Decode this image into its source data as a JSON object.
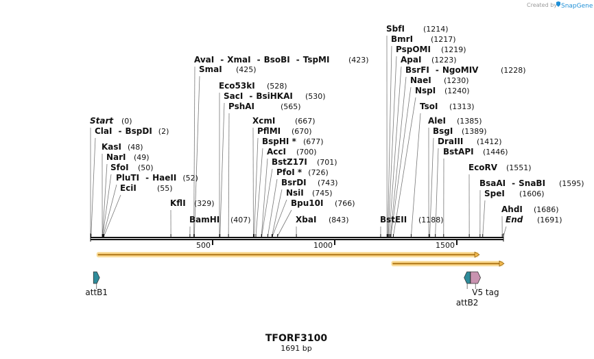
{
  "credit": {
    "prefix": "Created by",
    "brand": "SnapGene"
  },
  "map": {
    "title": "TFORF3100",
    "length_label": "1691 bp",
    "length": 1691,
    "ticks": [
      {
        "value": 500,
        "label": "500"
      },
      {
        "value": 1000,
        "label": "1000"
      },
      {
        "value": 1500,
        "label": "1500"
      }
    ]
  },
  "sites": [
    {
      "names": [
        "Start"
      ],
      "pos": 0,
      "pos_label": "(0)",
      "italic": true
    },
    {
      "names": [
        "ClaI",
        "BspDI"
      ],
      "pos": 2,
      "pos_label": "(2)"
    },
    {
      "names": [
        "KasI"
      ],
      "pos": 48,
      "pos_label": "(48)"
    },
    {
      "names": [
        "NarI"
      ],
      "pos": 49,
      "pos_label": "(49)"
    },
    {
      "names": [
        "SfoI"
      ],
      "pos": 50,
      "pos_label": "(50)"
    },
    {
      "names": [
        "PluTI",
        "HaeII"
      ],
      "pos": 52,
      "pos_label": "(52)"
    },
    {
      "names": [
        "EciI"
      ],
      "pos": 55,
      "pos_label": "(55)"
    },
    {
      "names": [
        "KflI"
      ],
      "pos": 329,
      "pos_label": "(329)"
    },
    {
      "names": [
        "BamHI"
      ],
      "pos": 407,
      "pos_label": "(407)"
    },
    {
      "names": [
        "SmaI"
      ],
      "pos": 425,
      "pos_label": "(425)"
    },
    {
      "names": [
        "AvaI",
        "XmaI",
        "BsoBI",
        "TspMI"
      ],
      "pos": 423,
      "pos_label": "(423)"
    },
    {
      "names": [
        "Eco53kI"
      ],
      "pos": 528,
      "pos_label": "(528)"
    },
    {
      "names": [
        "SacI",
        "BsiHKAI"
      ],
      "pos": 530,
      "pos_label": "(530)"
    },
    {
      "names": [
        "PshAI"
      ],
      "pos": 565,
      "pos_label": "(565)"
    },
    {
      "names": [
        "XcmI"
      ],
      "pos": 667,
      "pos_label": "(667)"
    },
    {
      "names": [
        "PflMI"
      ],
      "pos": 670,
      "pos_label": "(670)"
    },
    {
      "names": [
        "BspHI *"
      ],
      "pos": 677,
      "pos_label": "(677)"
    },
    {
      "names": [
        "AccI"
      ],
      "pos": 700,
      "pos_label": "(700)"
    },
    {
      "names": [
        "BstZ17I"
      ],
      "pos": 701,
      "pos_label": "(701)"
    },
    {
      "names": [
        "PfoI *"
      ],
      "pos": 726,
      "pos_label": "(726)"
    },
    {
      "names": [
        "BsrDI"
      ],
      "pos": 743,
      "pos_label": "(743)"
    },
    {
      "names": [
        "NsiI"
      ],
      "pos": 745,
      "pos_label": "(745)"
    },
    {
      "names": [
        "Bpu10I"
      ],
      "pos": 766,
      "pos_label": "(766)"
    },
    {
      "names": [
        "XbaI"
      ],
      "pos": 843,
      "pos_label": "(843)"
    },
    {
      "names": [
        "BstEII"
      ],
      "pos": 1188,
      "pos_label": "(1188)"
    },
    {
      "names": [
        "SbfI"
      ],
      "pos": 1214,
      "pos_label": "(1214)"
    },
    {
      "names": [
        "BmrI"
      ],
      "pos": 1217,
      "pos_label": "(1217)"
    },
    {
      "names": [
        "PspOMI"
      ],
      "pos": 1219,
      "pos_label": "(1219)"
    },
    {
      "names": [
        "ApaI"
      ],
      "pos": 1223,
      "pos_label": "(1223)"
    },
    {
      "names": [
        "BsrFI",
        "NgoMIV"
      ],
      "pos": 1228,
      "pos_label": "(1228)"
    },
    {
      "names": [
        "NaeI"
      ],
      "pos": 1230,
      "pos_label": "(1230)"
    },
    {
      "names": [
        "NspI"
      ],
      "pos": 1240,
      "pos_label": "(1240)"
    },
    {
      "names": [
        "TsoI"
      ],
      "pos": 1313,
      "pos_label": "(1313)"
    },
    {
      "names": [
        "AleI"
      ],
      "pos": 1385,
      "pos_label": "(1385)"
    },
    {
      "names": [
        "BsgI"
      ],
      "pos": 1389,
      "pos_label": "(1389)"
    },
    {
      "names": [
        "DraIII"
      ],
      "pos": 1412,
      "pos_label": "(1412)"
    },
    {
      "names": [
        "BstAPI"
      ],
      "pos": 1446,
      "pos_label": "(1446)"
    },
    {
      "names": [
        "EcoRV"
      ],
      "pos": 1551,
      "pos_label": "(1551)"
    },
    {
      "names": [
        "BsaAI",
        "SnaBI"
      ],
      "pos": 1595,
      "pos_label": "(1595)"
    },
    {
      "names": [
        "SpeI"
      ],
      "pos": 1606,
      "pos_label": "(1606)"
    },
    {
      "names": [
        "AhdI"
      ],
      "pos": 1686,
      "pos_label": "(1686)"
    },
    {
      "names": [
        "End"
      ],
      "pos": 1691,
      "pos_label": "(1691)",
      "italic": true
    }
  ],
  "orfs": [
    {
      "start": 30,
      "end": 1590
    },
    {
      "start": 1237,
      "end": 1691
    }
  ],
  "features": [
    {
      "name": "attB1",
      "start": 12,
      "end": 37,
      "color": "#2e8b9a",
      "direction": "forward"
    },
    {
      "name": "attB2",
      "start": 1530,
      "end": 1555,
      "color": "#2e8b9a",
      "direction": "reverse"
    },
    {
      "name": "V5 tag",
      "start": 1556,
      "end": 1597,
      "color": "#c993b0",
      "direction": "forward"
    }
  ],
  "colors": {
    "backbone": "#111111",
    "orf_fill": "#f2b84b",
    "orf_glow": "#f9dea0",
    "orf_line": "#7a4a00",
    "leader": "#777777"
  }
}
